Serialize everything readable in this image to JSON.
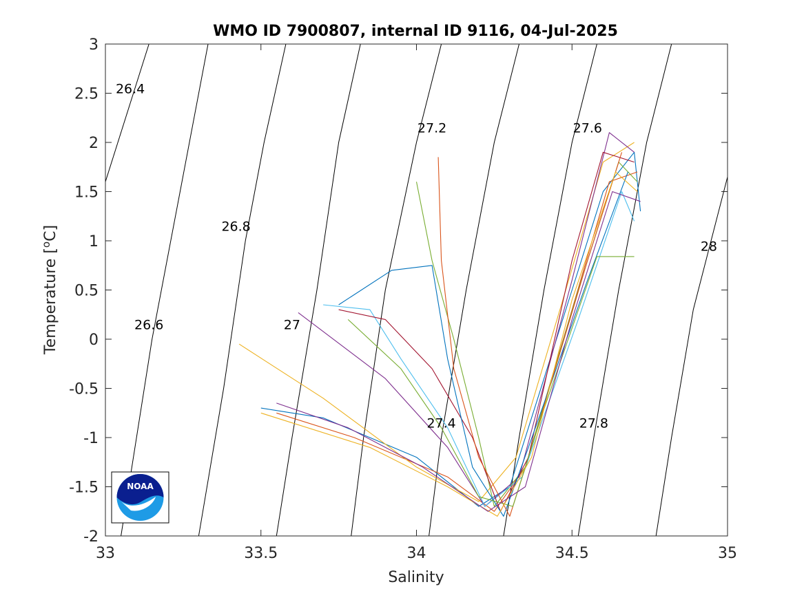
{
  "chart_data": {
    "type": "line",
    "title": "WMO ID 7900807, internal ID 9116, 04-Jul-2025",
    "xlabel": "Salinity",
    "ylabel": "Temperature [",
    "ylabel_sup": "o",
    "ylabel_tail": "C]",
    "xlim": [
      33,
      35
    ],
    "ylim": [
      -2,
      3
    ],
    "xticks": [
      33,
      33.5,
      34,
      34.5,
      35
    ],
    "xtick_labels": [
      "33",
      "33.5",
      "34",
      "34.5",
      "35"
    ],
    "yticks": [
      -2,
      -1.5,
      -1,
      -0.5,
      0,
      0.5,
      1,
      1.5,
      2,
      2.5,
      3
    ],
    "ytick_labels": [
      "-2",
      "-1.5",
      "-1",
      "-0.5",
      "0",
      "0.5",
      "1",
      "1.5",
      "2",
      "2.5",
      "3"
    ],
    "grid": false,
    "isopycnals": [
      {
        "label": "26.4",
        "points": [
          [
            33.0,
            1.6
          ],
          [
            33.14,
            3.0
          ]
        ],
        "label_at": [
          33.08,
          2.5
        ]
      },
      {
        "label": "26.6",
        "points": [
          [
            33.05,
            -2.0
          ],
          [
            33.15,
            0.0
          ],
          [
            33.24,
            1.5
          ],
          [
            33.33,
            3.0
          ]
        ],
        "label_at": [
          33.14,
          0.1
        ]
      },
      {
        "label": "26.8",
        "points": [
          [
            33.3,
            -2.0
          ],
          [
            33.38,
            -0.5
          ],
          [
            33.45,
            1.0
          ],
          [
            33.51,
            2.0
          ],
          [
            33.58,
            3.0
          ]
        ],
        "label_at": [
          33.42,
          1.1
        ]
      },
      {
        "label": "27",
        "points": [
          [
            33.55,
            -2.0
          ],
          [
            33.6,
            -1.0
          ],
          [
            33.68,
            0.5
          ],
          [
            33.75,
            2.0
          ],
          [
            33.82,
            3.0
          ]
        ],
        "label_at": [
          33.6,
          0.1
        ]
      },
      {
        "label": "27.2",
        "points": [
          [
            33.79,
            -2.0
          ],
          [
            33.83,
            -1.0
          ],
          [
            33.9,
            0.5
          ],
          [
            34.0,
            2.0
          ],
          [
            34.08,
            3.0
          ]
        ],
        "label_at": [
          34.05,
          2.1
        ]
      },
      {
        "label": "27.4",
        "points": [
          [
            34.04,
            -2.0
          ],
          [
            34.08,
            -1.0
          ],
          [
            34.16,
            0.5
          ],
          [
            34.25,
            2.0
          ],
          [
            34.33,
            3.0
          ]
        ],
        "label_at": [
          34.08,
          -0.9
        ]
      },
      {
        "label": "27.6",
        "points": [
          [
            34.28,
            -2.0
          ],
          [
            34.33,
            -1.0
          ],
          [
            34.41,
            0.5
          ],
          [
            34.5,
            2.0
          ],
          [
            34.58,
            3.0
          ]
        ],
        "label_at": [
          34.55,
          2.1
        ]
      },
      {
        "label": "27.8",
        "points": [
          [
            34.52,
            -2.0
          ],
          [
            34.57,
            -1.0
          ],
          [
            34.65,
            0.5
          ],
          [
            34.74,
            2.0
          ],
          [
            34.82,
            3.0
          ]
        ],
        "label_at": [
          34.57,
          -0.9
        ]
      },
      {
        "label": "28",
        "points": [
          [
            34.77,
            -2.0
          ],
          [
            34.82,
            -1.0
          ],
          [
            34.89,
            0.3
          ],
          [
            35.0,
            1.65
          ]
        ],
        "label_at": [
          34.94,
          0.9
        ]
      }
    ],
    "series": [
      {
        "color": "#0072BD",
        "points": [
          [
            33.5,
            -0.7
          ],
          [
            33.7,
            -0.8
          ],
          [
            34.0,
            -1.2
          ],
          [
            34.2,
            -1.7
          ],
          [
            34.3,
            -1.5
          ],
          [
            34.5,
            0.5
          ],
          [
            34.6,
            1.5
          ],
          [
            34.7,
            1.9
          ],
          [
            34.72,
            1.3
          ]
        ]
      },
      {
        "color": "#D95319",
        "points": [
          [
            33.55,
            -0.75
          ],
          [
            33.8,
            -1.0
          ],
          [
            34.1,
            -1.4
          ],
          [
            34.25,
            -1.75
          ],
          [
            34.35,
            -1.3
          ],
          [
            34.5,
            0.3
          ],
          [
            34.62,
            1.6
          ],
          [
            34.71,
            1.7
          ]
        ]
      },
      {
        "color": "#EDB120",
        "points": [
          [
            33.43,
            -0.05
          ],
          [
            33.7,
            -0.6
          ],
          [
            34.0,
            -1.3
          ],
          [
            34.2,
            -1.65
          ],
          [
            34.32,
            -1.2
          ],
          [
            34.48,
            0.5
          ],
          [
            34.6,
            1.8
          ],
          [
            34.7,
            2.0
          ]
        ]
      },
      {
        "color": "#7E2F8E",
        "points": [
          [
            33.62,
            0.27
          ],
          [
            33.9,
            -0.4
          ],
          [
            34.1,
            -1.1
          ],
          [
            34.22,
            -1.7
          ],
          [
            34.33,
            -1.4
          ],
          [
            34.5,
            0.6
          ],
          [
            34.62,
            2.1
          ],
          [
            34.7,
            1.9
          ]
        ]
      },
      {
        "color": "#77AC30",
        "points": [
          [
            34.0,
            1.6
          ],
          [
            34.05,
            0.8
          ],
          [
            34.12,
            0.0
          ],
          [
            34.2,
            -1.0
          ],
          [
            34.25,
            -1.7
          ],
          [
            34.35,
            -1.3
          ],
          [
            34.52,
            0.5
          ],
          [
            34.65,
            1.8
          ],
          [
            34.71,
            1.6
          ]
        ]
      },
      {
        "color": "#4DBEEE",
        "points": [
          [
            33.7,
            0.35
          ],
          [
            33.85,
            0.3
          ],
          [
            33.95,
            -0.2
          ],
          [
            34.1,
            -0.9
          ],
          [
            34.22,
            -1.7
          ],
          [
            34.34,
            -1.4
          ],
          [
            34.52,
            0.2
          ],
          [
            34.66,
            1.5
          ],
          [
            34.7,
            1.2
          ]
        ]
      },
      {
        "color": "#A2142F",
        "points": [
          [
            33.75,
            0.3
          ],
          [
            33.9,
            0.2
          ],
          [
            34.05,
            -0.3
          ],
          [
            34.18,
            -1.0
          ],
          [
            34.27,
            -1.75
          ],
          [
            34.36,
            -1.2
          ],
          [
            34.5,
            0.8
          ],
          [
            34.6,
            1.9
          ],
          [
            34.7,
            1.8
          ]
        ]
      },
      {
        "color": "#0072BD",
        "points": [
          [
            33.75,
            0.35
          ],
          [
            33.92,
            0.7
          ],
          [
            34.05,
            0.75
          ],
          [
            34.1,
            -0.2
          ],
          [
            34.18,
            -1.3
          ],
          [
            34.28,
            -1.8
          ],
          [
            34.36,
            -1.1
          ],
          [
            34.55,
            0.6
          ],
          [
            34.68,
            1.7
          ]
        ]
      },
      {
        "color": "#D95319",
        "points": [
          [
            34.07,
            1.85
          ],
          [
            34.08,
            0.8
          ],
          [
            34.12,
            -0.3
          ],
          [
            34.2,
            -1.2
          ],
          [
            34.3,
            -1.8
          ],
          [
            34.38,
            -1.0
          ],
          [
            34.55,
            0.8
          ],
          [
            34.66,
            1.9
          ]
        ]
      },
      {
        "color": "#77AC30",
        "points": [
          [
            33.78,
            0.2
          ],
          [
            33.95,
            -0.3
          ],
          [
            34.08,
            -0.9
          ],
          [
            34.2,
            -1.6
          ],
          [
            34.31,
            -1.7
          ],
          [
            34.4,
            -0.8
          ],
          [
            34.58,
            0.84
          ],
          [
            34.7,
            0.84
          ]
        ]
      },
      {
        "color": "#EDB120",
        "points": [
          [
            33.5,
            -0.75
          ],
          [
            33.85,
            -1.1
          ],
          [
            34.1,
            -1.5
          ],
          [
            34.26,
            -1.8
          ],
          [
            34.37,
            -1.2
          ],
          [
            34.5,
            0.4
          ],
          [
            34.64,
            1.7
          ],
          [
            34.71,
            1.5
          ]
        ]
      },
      {
        "color": "#7E2F8E",
        "points": [
          [
            33.55,
            -0.65
          ],
          [
            33.78,
            -0.9
          ],
          [
            34.02,
            -1.3
          ],
          [
            34.23,
            -1.75
          ],
          [
            34.35,
            -1.5
          ],
          [
            34.5,
            0.2
          ],
          [
            34.63,
            1.5
          ],
          [
            34.72,
            1.4
          ]
        ]
      }
    ]
  },
  "logo": {
    "text": "NOAA"
  }
}
